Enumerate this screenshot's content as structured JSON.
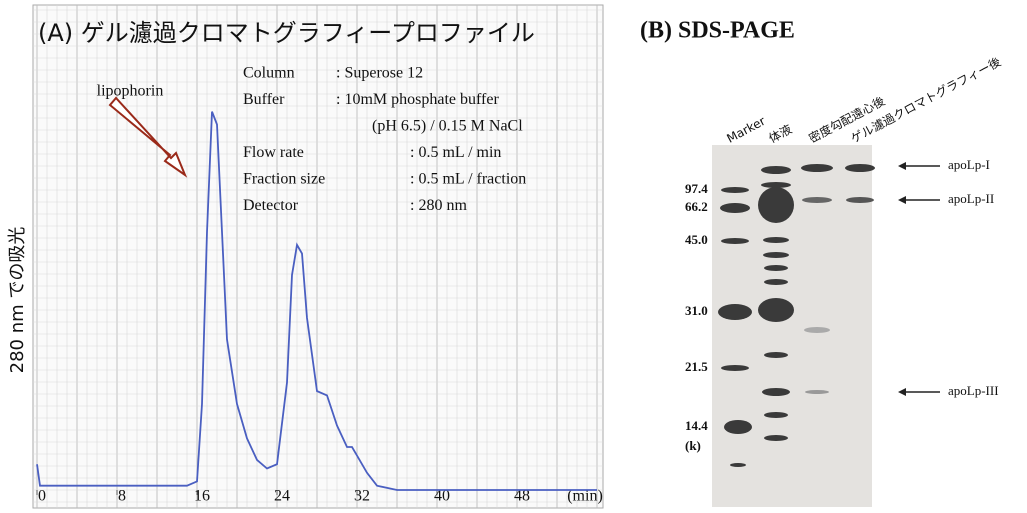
{
  "chart_data": {
    "type": "line",
    "title": "(A) ゲル濾過クロマトグラフィープロファイル",
    "y_label": "280 nm での吸光",
    "x_unit_label": "(min)",
    "annotation": "lipophorin",
    "info": [
      [
        "Column",
        ": Superose 12"
      ],
      [
        "Buffer",
        ": 10mM phosphate buffer"
      ],
      [
        "",
        "(pH 6.5) / 0.15 M NaCl"
      ],
      [
        "Flow rate",
        ": 0.5 mL / min"
      ],
      [
        "Fraction size",
        ": 0.5 mL / fraction"
      ],
      [
        "Detector",
        ": 280 nm"
      ]
    ],
    "x": [
      0,
      0.3,
      8,
      15,
      16,
      16.5,
      17,
      17.5,
      18,
      18.5,
      19,
      20,
      21,
      22,
      23,
      24,
      25,
      25.5,
      26,
      26.5,
      27,
      28,
      29,
      30,
      31,
      31.5,
      32,
      33,
      34,
      36,
      40,
      48,
      56
    ],
    "series": [
      {
        "color": "#4a5fc1",
        "values": [
          6,
          1,
          1,
          1,
          2,
          20,
          60,
          88,
          85,
          60,
          35,
          20,
          12,
          7,
          5,
          6,
          25,
          50,
          57,
          55,
          40,
          23,
          22,
          15,
          10,
          10,
          8,
          4,
          1,
          0,
          0,
          0,
          0
        ]
      }
    ],
    "xlim": [
      0,
      56
    ],
    "ylim": [
      0,
      100
    ],
    "xticks": [
      0,
      8,
      16,
      24,
      32,
      40,
      48
    ]
  },
  "gel": {
    "title": "(B) SDS-PAGE",
    "lanes": [
      "Marker",
      "体液",
      "密度勾配遠心後",
      "ゲル濾過クロマトグラフィー後"
    ],
    "markers": [
      "97.4",
      "66.2",
      "45.0",
      "31.0",
      "21.5",
      "14.4",
      "(k)"
    ],
    "bands": [
      "apoLp-I",
      "apoLp-II",
      "apoLp-III"
    ]
  }
}
